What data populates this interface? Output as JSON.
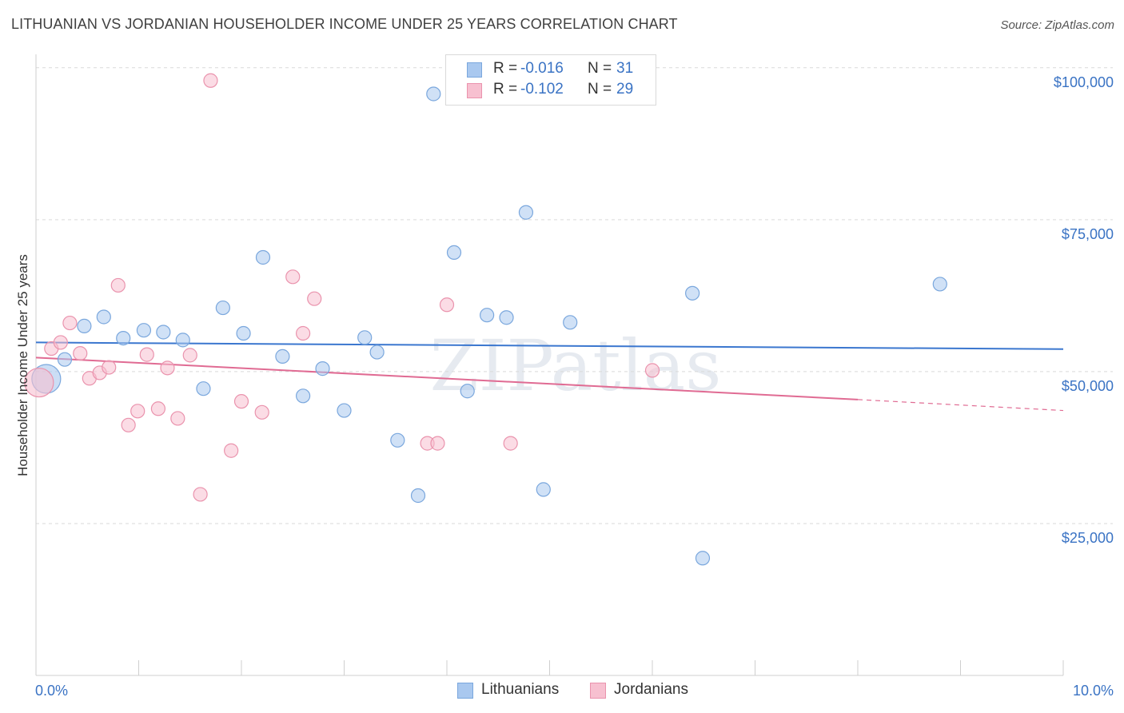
{
  "title": "LITHUANIAN VS JORDANIAN HOUSEHOLDER INCOME UNDER 25 YEARS CORRELATION CHART",
  "source": "Source: ZipAtlas.com",
  "watermark": "ZIPatlas",
  "stats": [
    {
      "r_label": "R =",
      "r_value": "-0.016",
      "n_label": "N =",
      "n_value": "31",
      "color": "#a9c8ef",
      "border": "#7aa7dd"
    },
    {
      "r_label": "R =",
      "r_value": "-0.102",
      "n_label": "N =",
      "n_value": "29",
      "color": "#f7c0d0",
      "border": "#ea93ad"
    }
  ],
  "legend": [
    {
      "label": "Lithuanians",
      "color": "#a9c8ef",
      "border": "#7aa7dd"
    },
    {
      "label": "Jordanians",
      "color": "#f7c0d0",
      "border": "#ea93ad"
    }
  ],
  "chart_data": {
    "type": "scatter",
    "title": "LITHUANIAN VS JORDANIAN HOUSEHOLDER INCOME UNDER 25 YEARS CORRELATION CHART",
    "xlabel": "",
    "ylabel": "Householder Income Under 25 years",
    "xlim": [
      0,
      10
    ],
    "ylim": [
      0,
      103000
    ],
    "x_tick_labels": [
      {
        "value": 0,
        "label": "0.0%"
      },
      {
        "value": 10,
        "label": "10.0%"
      }
    ],
    "y_tick_labels": [
      {
        "value": 25000,
        "label": "$25,000"
      },
      {
        "value": 50000,
        "label": "$50,000"
      },
      {
        "value": 75000,
        "label": "$75,000"
      },
      {
        "value": 100000,
        "label": "$100,000"
      }
    ],
    "grid": "horizontal dashed",
    "series": [
      {
        "name": "Lithuanians",
        "color": "#a9c8ef",
        "stroke": "#7aa7dd",
        "trend": {
          "x": [
            0,
            10
          ],
          "y": [
            54800,
            53700
          ],
          "color": "#3b77cf"
        },
        "points": [
          {
            "x": 0.1,
            "y": 48800,
            "big": true
          },
          {
            "x": 0.28,
            "y": 52000
          },
          {
            "x": 0.47,
            "y": 57500
          },
          {
            "x": 0.66,
            "y": 59000
          },
          {
            "x": 0.85,
            "y": 55500
          },
          {
            "x": 1.05,
            "y": 56800
          },
          {
            "x": 1.24,
            "y": 56500
          },
          {
            "x": 1.43,
            "y": 55200
          },
          {
            "x": 1.63,
            "y": 47200
          },
          {
            "x": 1.82,
            "y": 60500
          },
          {
            "x": 2.02,
            "y": 56300
          },
          {
            "x": 2.21,
            "y": 68800
          },
          {
            "x": 2.4,
            "y": 52500
          },
          {
            "x": 2.6,
            "y": 46000
          },
          {
            "x": 2.79,
            "y": 50500
          },
          {
            "x": 3.0,
            "y": 43600
          },
          {
            "x": 3.2,
            "y": 55600
          },
          {
            "x": 3.32,
            "y": 53200
          },
          {
            "x": 3.52,
            "y": 38700
          },
          {
            "x": 3.72,
            "y": 29600
          },
          {
            "x": 3.87,
            "y": 95700
          },
          {
            "x": 4.07,
            "y": 69600
          },
          {
            "x": 4.2,
            "y": 46800
          },
          {
            "x": 4.39,
            "y": 59300
          },
          {
            "x": 4.58,
            "y": 58900
          },
          {
            "x": 4.77,
            "y": 76200
          },
          {
            "x": 4.94,
            "y": 30600
          },
          {
            "x": 5.2,
            "y": 58100
          },
          {
            "x": 6.39,
            "y": 62900
          },
          {
            "x": 6.49,
            "y": 19300
          },
          {
            "x": 8.8,
            "y": 64400
          }
        ]
      },
      {
        "name": "Jordanians",
        "color": "#f7c0d0",
        "stroke": "#ea93ad",
        "trend": {
          "x": [
            0,
            8.0
          ],
          "y": [
            52300,
            45400
          ],
          "dash_x": [
            8.0,
            10
          ],
          "dash_y": [
            45400,
            43600
          ],
          "color": "#e06b93"
        },
        "points": [
          {
            "x": 0.03,
            "y": 48200,
            "big": true
          },
          {
            "x": 0.15,
            "y": 53800
          },
          {
            "x": 0.24,
            "y": 54800
          },
          {
            "x": 0.33,
            "y": 58000
          },
          {
            "x": 0.43,
            "y": 53000
          },
          {
            "x": 0.52,
            "y": 48900
          },
          {
            "x": 0.62,
            "y": 49800
          },
          {
            "x": 0.71,
            "y": 50700
          },
          {
            "x": 0.8,
            "y": 64200
          },
          {
            "x": 0.9,
            "y": 41200
          },
          {
            "x": 0.99,
            "y": 43500
          },
          {
            "x": 1.08,
            "y": 52800
          },
          {
            "x": 1.19,
            "y": 43900
          },
          {
            "x": 1.28,
            "y": 50600
          },
          {
            "x": 1.38,
            "y": 42300
          },
          {
            "x": 1.5,
            "y": 52700
          },
          {
            "x": 1.6,
            "y": 29800
          },
          {
            "x": 1.7,
            "y": 97900
          },
          {
            "x": 1.9,
            "y": 37000
          },
          {
            "x": 2.0,
            "y": 45100
          },
          {
            "x": 2.2,
            "y": 43300
          },
          {
            "x": 2.5,
            "y": 65600
          },
          {
            "x": 2.6,
            "y": 56300
          },
          {
            "x": 2.71,
            "y": 62000
          },
          {
            "x": 3.81,
            "y": 38200
          },
          {
            "x": 3.91,
            "y": 38200
          },
          {
            "x": 4.0,
            "y": 61000
          },
          {
            "x": 4.62,
            "y": 38200
          },
          {
            "x": 6.0,
            "y": 50200
          }
        ]
      }
    ]
  }
}
